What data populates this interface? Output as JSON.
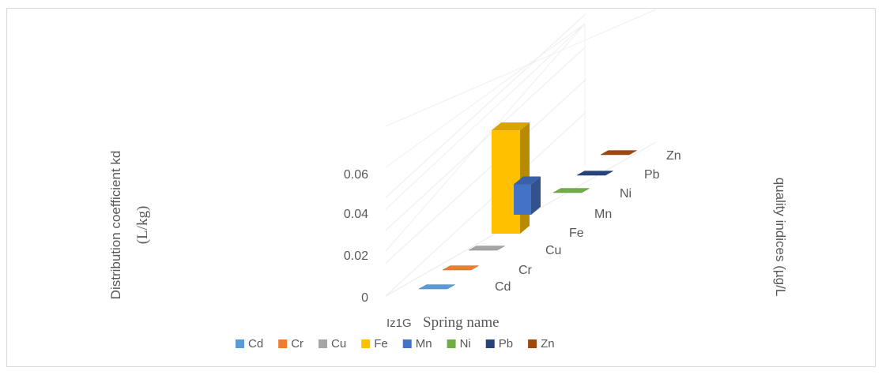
{
  "chart_data": {
    "type": "bar",
    "chart_style": "3d-column",
    "x_category": "Iz1G",
    "xlabel": "Spring name",
    "ylabel_line1": "Distribution coefficient   kd",
    "ylabel_line2": "(L/kg)",
    "zlabel": "quality indices (µg/L",
    "ylim": [
      0,
      0.06
    ],
    "yticks": [
      "0",
      "0.02",
      "0.04",
      "0.06"
    ],
    "series": [
      {
        "name": "Cd",
        "color": "#5B9BD5",
        "value": 0.0
      },
      {
        "name": "Cr",
        "color": "#ED7D31",
        "value": 0.0
      },
      {
        "name": "Cu",
        "color": "#A5A5A5",
        "value": 0.0
      },
      {
        "name": "Fe",
        "color": "#FFC000",
        "value": 0.068
      },
      {
        "name": "Mn",
        "color": "#4472C4",
        "value": 0.02
      },
      {
        "name": "Ni",
        "color": "#70AD47",
        "value": 0.0
      },
      {
        "name": "Pb",
        "color": "#264478",
        "value": 0.0
      },
      {
        "name": "Zn",
        "color": "#9E480E",
        "value": 0.0
      }
    ],
    "legend_position": "bottom",
    "grid": true
  }
}
